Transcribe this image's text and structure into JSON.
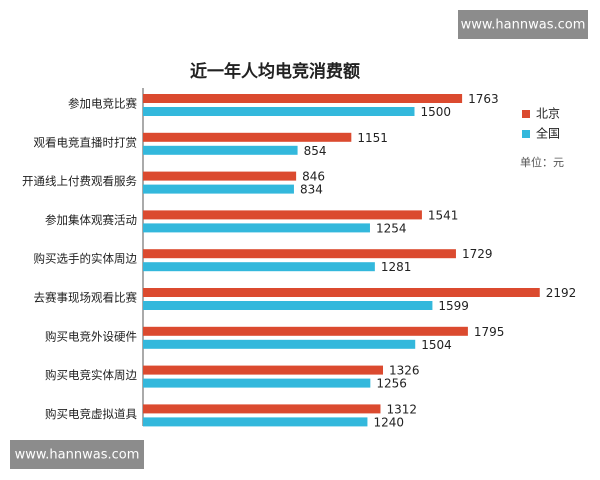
{
  "chart_data": {
    "type": "bar",
    "orientation": "horizontal",
    "title": "近一年人均电竞消费额",
    "categories": [
      "参加电竞比赛",
      "观看电竞直播时打赏",
      "开通线上付费观看服务",
      "参加集体观赛活动",
      "购买选手的实体周边",
      "去赛事现场观看比赛",
      "购买电竞外设硬件",
      "购买电竞实体周边",
      "购买电竞虚拟道具"
    ],
    "series": [
      {
        "name": "北京",
        "color": "#db4a2f",
        "values": [
          1763,
          1151,
          846,
          1541,
          1729,
          2192,
          1795,
          1326,
          1312
        ]
      },
      {
        "name": "全国",
        "color": "#33b8dc",
        "values": [
          1500,
          854,
          834,
          1254,
          1281,
          1599,
          1504,
          1256,
          1240
        ]
      }
    ],
    "unit_note": "单位：元",
    "legend": "right"
  },
  "watermarks": [
    "www.hannwas.com",
    "www.hannwas.com"
  ]
}
